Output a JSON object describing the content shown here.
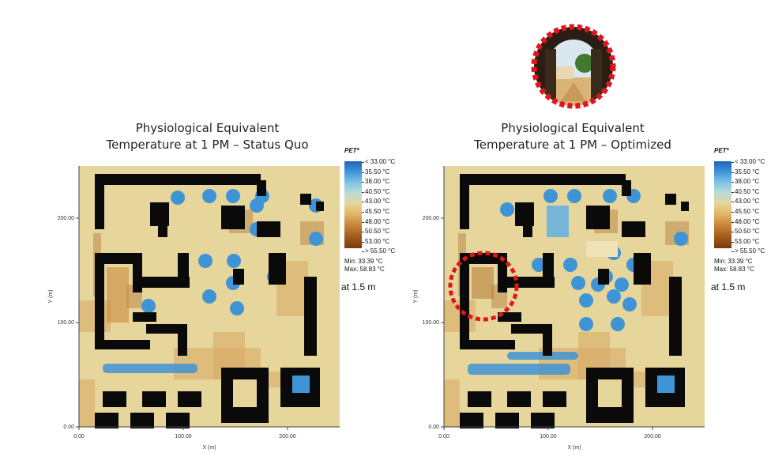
{
  "chart_data": [
    {
      "type": "heatmap",
      "title": "Physiological Equivalent Temperature at 1 PM – Status Quo",
      "title_lines": [
        "Physiological Equivalent",
        "Temperature at 1 PM – Status Quo"
      ],
      "xlabel": "X (m)",
      "ylabel": "Y (m)",
      "xticks": [
        "0.00",
        "100.00",
        "200.00"
      ],
      "yticks": [
        "0.00",
        "100.00",
        "200.00"
      ],
      "xlim": [
        0,
        250
      ],
      "ylim": [
        0,
        250
      ],
      "legend_title": "PET*",
      "legend_labels": [
        "< 33.00 °C",
        "35.50 °C",
        "38.00 °C",
        "40.50 °C",
        "43.00 °C",
        "45.50 °C",
        "48.00 °C",
        "50.50 °C",
        "53.00 °C",
        "> 55.50 °C"
      ],
      "min_label": "Min: 33.39 °C",
      "max_label": "Max: 58.83 °C",
      "height_label": "at 1.5 m",
      "legend_position": "right"
    },
    {
      "type": "heatmap",
      "title": "Physiological Equivalent Temperature at 1 PM – Optimized",
      "title_lines": [
        "Physiological Equivalent",
        "Temperature at 1 PM – Optimized"
      ],
      "xlabel": "X (m)",
      "ylabel": "Y (m)",
      "xticks": [
        "0.00",
        "100.00",
        "200.00"
      ],
      "yticks": [
        "0.00",
        "100.00",
        "200.00"
      ],
      "xlim": [
        0,
        250
      ],
      "ylim": [
        0,
        250
      ],
      "legend_title": "PET*",
      "legend_labels": [
        "< 33.00 °C",
        "35.50 °C",
        "38.00 °C",
        "40.50 °C",
        "43.00 °C",
        "45.50 °C",
        "48.00 °C",
        "50.50 °C",
        "53.00 °C",
        "> 55.50 °C"
      ],
      "min_label": "Min: 33.39 °C",
      "max_label": "Max: 58.83 °C",
      "height_label": "at 1.5 m",
      "legend_position": "right",
      "annotation": "red dashed circle highlighting courtyard"
    }
  ],
  "colors": {
    "cool": "#3f94d6",
    "warm": "#e6d69c",
    "hot": "#a45d1e",
    "building": "#0a0a0a",
    "highlight": "#e0161b"
  },
  "inset_image": "archway-photo-icon"
}
